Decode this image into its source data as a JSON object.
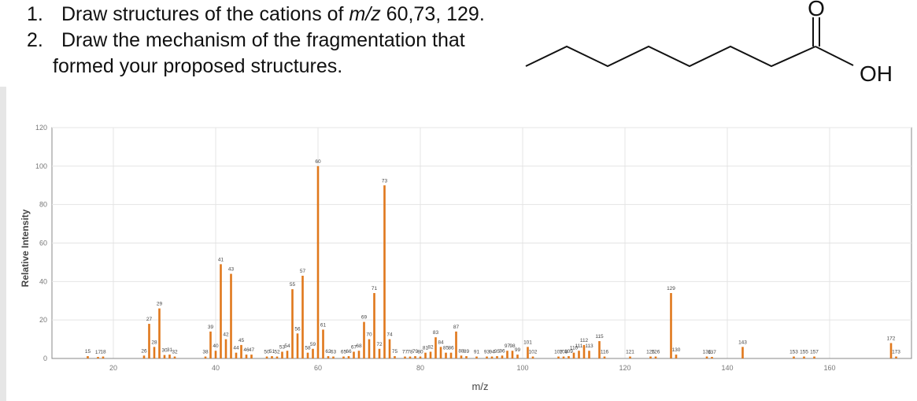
{
  "questions": [
    {
      "number": "1.",
      "text_before": "Draw structures of the cations of ",
      "mz": "m/z",
      "text_after": " 60,73, 129."
    },
    {
      "number": "2.",
      "text": "Draw the mechanism of the fragmentation that",
      "continuation": "formed your proposed structures."
    }
  ],
  "structure": {
    "oxygen_label": "O",
    "hydroxyl_label": "OH"
  },
  "colors": {
    "bar": "#e0781c",
    "axis": "#888888",
    "grid": "#e4e4e4",
    "text": "#444444"
  },
  "chart_data": {
    "type": "bar",
    "xlabel": "m/z",
    "ylabel": "Relative Intensity",
    "xlim": [
      8,
      176
    ],
    "ylim": [
      0,
      120
    ],
    "xticks": [
      20,
      40,
      60,
      80,
      100,
      120,
      140,
      160
    ],
    "yticks": [
      0,
      20,
      40,
      60,
      80,
      100,
      120
    ],
    "grid": true,
    "peaks": [
      {
        "mz": 15,
        "intensity": 1.2,
        "label": "15"
      },
      {
        "mz": 17,
        "intensity": 0.8,
        "label": "17"
      },
      {
        "mz": 18,
        "intensity": 1.0,
        "label": "18"
      },
      {
        "mz": 26,
        "intensity": 1.5,
        "label": "26"
      },
      {
        "mz": 27,
        "intensity": 18,
        "label": "27"
      },
      {
        "mz": 28,
        "intensity": 6,
        "label": "28"
      },
      {
        "mz": 29,
        "intensity": 26,
        "label": "29"
      },
      {
        "mz": 30,
        "intensity": 1.8,
        "label": "30"
      },
      {
        "mz": 31,
        "intensity": 2.0,
        "label": "31"
      },
      {
        "mz": 32,
        "intensity": 1.0,
        "label": "32"
      },
      {
        "mz": 38,
        "intensity": 1.0,
        "label": "38"
      },
      {
        "mz": 39,
        "intensity": 14,
        "label": "39"
      },
      {
        "mz": 40,
        "intensity": 4,
        "label": "40"
      },
      {
        "mz": 41,
        "intensity": 49,
        "label": "41"
      },
      {
        "mz": 42,
        "intensity": 10,
        "label": "42"
      },
      {
        "mz": 43,
        "intensity": 44,
        "label": "43"
      },
      {
        "mz": 44,
        "intensity": 3,
        "label": "44"
      },
      {
        "mz": 45,
        "intensity": 7,
        "label": "45"
      },
      {
        "mz": 46,
        "intensity": 2.0,
        "label": "46"
      },
      {
        "mz": 47,
        "intensity": 2.0,
        "label": "47"
      },
      {
        "mz": 50,
        "intensity": 1.0,
        "label": "50"
      },
      {
        "mz": 51,
        "intensity": 1.2,
        "label": "51"
      },
      {
        "mz": 52,
        "intensity": 1.0,
        "label": "52"
      },
      {
        "mz": 53,
        "intensity": 3.5,
        "label": "53"
      },
      {
        "mz": 54,
        "intensity": 4,
        "label": "54"
      },
      {
        "mz": 55,
        "intensity": 36,
        "label": "55"
      },
      {
        "mz": 56,
        "intensity": 13,
        "label": "56"
      },
      {
        "mz": 57,
        "intensity": 43,
        "label": "57"
      },
      {
        "mz": 58,
        "intensity": 3,
        "label": "58"
      },
      {
        "mz": 59,
        "intensity": 5,
        "label": "59"
      },
      {
        "mz": 60,
        "intensity": 100,
        "label": "60"
      },
      {
        "mz": 61,
        "intensity": 15,
        "label": "61"
      },
      {
        "mz": 62,
        "intensity": 1.2,
        "label": "62"
      },
      {
        "mz": 63,
        "intensity": 1.0,
        "label": "63"
      },
      {
        "mz": 65,
        "intensity": 1.0,
        "label": "65"
      },
      {
        "mz": 66,
        "intensity": 1.2,
        "label": "66"
      },
      {
        "mz": 67,
        "intensity": 3.5,
        "label": "67"
      },
      {
        "mz": 68,
        "intensity": 4,
        "label": "68"
      },
      {
        "mz": 69,
        "intensity": 19,
        "label": "69"
      },
      {
        "mz": 70,
        "intensity": 10,
        "label": "70"
      },
      {
        "mz": 71,
        "intensity": 34,
        "label": "71"
      },
      {
        "mz": 72,
        "intensity": 5,
        "label": "72"
      },
      {
        "mz": 73,
        "intensity": 90,
        "label": "73"
      },
      {
        "mz": 74,
        "intensity": 10,
        "label": "74"
      },
      {
        "mz": 75,
        "intensity": 1.2,
        "label": "75"
      },
      {
        "mz": 77,
        "intensity": 1.0,
        "label": "77"
      },
      {
        "mz": 78,
        "intensity": 1.0,
        "label": "78"
      },
      {
        "mz": 79,
        "intensity": 1.2,
        "label": "79"
      },
      {
        "mz": 80,
        "intensity": 1.0,
        "label": "80"
      },
      {
        "mz": 81,
        "intensity": 3,
        "label": "81"
      },
      {
        "mz": 82,
        "intensity": 3.5,
        "label": "82"
      },
      {
        "mz": 83,
        "intensity": 11,
        "label": "83"
      },
      {
        "mz": 84,
        "intensity": 6,
        "label": "84"
      },
      {
        "mz": 85,
        "intensity": 3,
        "label": "85"
      },
      {
        "mz": 86,
        "intensity": 3,
        "label": "86"
      },
      {
        "mz": 87,
        "intensity": 14,
        "label": "87"
      },
      {
        "mz": 88,
        "intensity": 1.5,
        "label": "88"
      },
      {
        "mz": 89,
        "intensity": 1.2,
        "label": "89"
      },
      {
        "mz": 91,
        "intensity": 1.0,
        "label": "91"
      },
      {
        "mz": 93,
        "intensity": 1.0,
        "label": "93"
      },
      {
        "mz": 94,
        "intensity": 1.0,
        "label": "94"
      },
      {
        "mz": 95,
        "intensity": 1.2,
        "label": "95"
      },
      {
        "mz": 96,
        "intensity": 1.5,
        "label": "96"
      },
      {
        "mz": 97,
        "intensity": 4,
        "label": "97"
      },
      {
        "mz": 98,
        "intensity": 4,
        "label": "98"
      },
      {
        "mz": 99,
        "intensity": 2.0,
        "label": "99"
      },
      {
        "mz": 101,
        "intensity": 6,
        "label": "101"
      },
      {
        "mz": 102,
        "intensity": 1.0,
        "label": "102"
      },
      {
        "mz": 107,
        "intensity": 1.0,
        "label": "107"
      },
      {
        "mz": 108,
        "intensity": 1.0,
        "label": "108"
      },
      {
        "mz": 109,
        "intensity": 1.2,
        "label": "109"
      },
      {
        "mz": 110,
        "intensity": 3,
        "label": "110"
      },
      {
        "mz": 111,
        "intensity": 4,
        "label": "111"
      },
      {
        "mz": 112,
        "intensity": 7,
        "label": "112"
      },
      {
        "mz": 113,
        "intensity": 4,
        "label": "113"
      },
      {
        "mz": 115,
        "intensity": 9,
        "label": "115"
      },
      {
        "mz": 116,
        "intensity": 1.0,
        "label": "116"
      },
      {
        "mz": 121,
        "intensity": 1.0,
        "label": "121"
      },
      {
        "mz": 125,
        "intensity": 1.0,
        "label": "125"
      },
      {
        "mz": 126,
        "intensity": 1.0,
        "label": "126"
      },
      {
        "mz": 129,
        "intensity": 34,
        "label": "129"
      },
      {
        "mz": 130,
        "intensity": 2.0,
        "label": "130"
      },
      {
        "mz": 136,
        "intensity": 1.0,
        "label": "136"
      },
      {
        "mz": 137,
        "intensity": 0.8,
        "label": "137"
      },
      {
        "mz": 143,
        "intensity": 6,
        "label": "143"
      },
      {
        "mz": 153,
        "intensity": 1.0,
        "label": "153"
      },
      {
        "mz": 155,
        "intensity": 1.0,
        "label": "155"
      },
      {
        "mz": 157,
        "intensity": 1.0,
        "label": "157"
      },
      {
        "mz": 172,
        "intensity": 8,
        "label": "172"
      },
      {
        "mz": 173,
        "intensity": 1.0,
        "label": "173"
      }
    ]
  }
}
